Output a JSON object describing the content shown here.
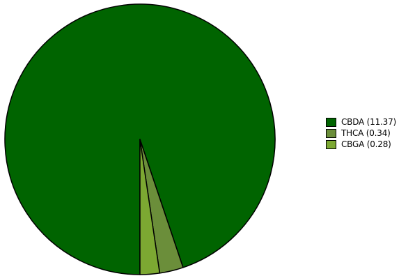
{
  "chart_data": {
    "type": "pie",
    "title": "",
    "slices": [
      {
        "label": "CBDA (11.37)",
        "value": 11.37,
        "color": "#006400"
      },
      {
        "label": "THCA (0.34)",
        "value": 0.34,
        "color": "#6b8e3a"
      },
      {
        "label": "CBGA (0.28)",
        "value": 0.28,
        "color": "#7ca832"
      }
    ],
    "legend_position": "right"
  }
}
